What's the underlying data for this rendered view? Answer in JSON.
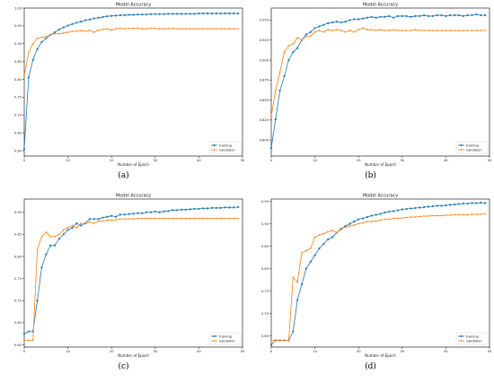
{
  "colors": {
    "training": "#1f77b4",
    "validation": "#ff7f0e"
  },
  "chart_data": [
    {
      "type": "line",
      "caption": "(a)",
      "title": "Model Accuracy",
      "xlabel": "Number of Epoch",
      "ylabel": "",
      "xlim": [
        0,
        50
      ],
      "ylim": [
        0.585,
        1.0
      ],
      "xticks": [
        0,
        10,
        20,
        30,
        40,
        50
      ],
      "yticks": [
        0.6,
        0.65,
        0.7,
        0.75,
        0.8,
        0.85,
        0.9,
        0.95,
        1.0
      ],
      "ytick_labels": [
        "0.60",
        "0.65",
        "0.70",
        "0.75",
        "0.80",
        "0.85",
        "0.90",
        "0.95",
        "1.00"
      ],
      "legend_position": "bottom-right",
      "series": [
        {
          "name": "training",
          "marker": "circle",
          "values": [
            0.605,
            0.805,
            0.855,
            0.885,
            0.905,
            0.915,
            0.925,
            0.932,
            0.94,
            0.946,
            0.951,
            0.955,
            0.959,
            0.962,
            0.966,
            0.968,
            0.971,
            0.973,
            0.975,
            0.977,
            0.978,
            0.979,
            0.98,
            0.98,
            0.981,
            0.981,
            0.982,
            0.982,
            0.982,
            0.983,
            0.983,
            0.983,
            0.983,
            0.984,
            0.984,
            0.984,
            0.984,
            0.984,
            0.984,
            0.984,
            0.985,
            0.985,
            0.985,
            0.985,
            0.985,
            0.985,
            0.985,
            0.985,
            0.985,
            0.985
          ]
        },
        {
          "name": "validation",
          "marker": "plus",
          "values": [
            0.81,
            0.875,
            0.9,
            0.915,
            0.918,
            0.92,
            0.925,
            0.928,
            0.928,
            0.93,
            0.932,
            0.935,
            0.935,
            0.937,
            0.935,
            0.937,
            0.932,
            0.938,
            0.94,
            0.942,
            0.938,
            0.942,
            0.943,
            0.942,
            0.943,
            0.943,
            0.943,
            0.942,
            0.942,
            0.943,
            0.943,
            0.942,
            0.942,
            0.942,
            0.943,
            0.942,
            0.942,
            0.942,
            0.942,
            0.942,
            0.942,
            0.942,
            0.942,
            0.942,
            0.942,
            0.942,
            0.942,
            0.942,
            0.942,
            0.942
          ]
        }
      ]
    },
    {
      "type": "line",
      "caption": "(b)",
      "title": "Model Accuracy",
      "xlabel": "Number of Epoch",
      "ylabel": "",
      "xlim": [
        0,
        50
      ],
      "ylim": [
        0.78,
        0.965
      ],
      "xticks": [
        0,
        10,
        20,
        30,
        40,
        50
      ],
      "yticks": [
        0.8,
        0.825,
        0.85,
        0.875,
        0.9,
        0.925,
        0.95
      ],
      "ytick_labels": [
        "0.800",
        "0.825",
        "0.850",
        "0.875",
        "0.900",
        "0.925",
        "0.950"
      ],
      "legend_position": "bottom-right",
      "series": [
        {
          "name": "training",
          "marker": "circle",
          "values": [
            0.79,
            0.826,
            0.862,
            0.88,
            0.9,
            0.91,
            0.915,
            0.925,
            0.932,
            0.935,
            0.94,
            0.942,
            0.944,
            0.946,
            0.947,
            0.948,
            0.947,
            0.948,
            0.95,
            0.951,
            0.951,
            0.952,
            0.953,
            0.954,
            0.953,
            0.954,
            0.954,
            0.955,
            0.953,
            0.955,
            0.955,
            0.955,
            0.954,
            0.955,
            0.955,
            0.956,
            0.955,
            0.955,
            0.956,
            0.956,
            0.955,
            0.956,
            0.956,
            0.956,
            0.955,
            0.956,
            0.956,
            0.957,
            0.956,
            0.956
          ]
        },
        {
          "name": "validation",
          "marker": "plus",
          "values": [
            0.83,
            0.862,
            0.885,
            0.91,
            0.918,
            0.92,
            0.928,
            0.925,
            0.93,
            0.93,
            0.935,
            0.937,
            0.935,
            0.938,
            0.937,
            0.938,
            0.937,
            0.935,
            0.937,
            0.935,
            0.938,
            0.94,
            0.938,
            0.938,
            0.937,
            0.938,
            0.937,
            0.937,
            0.938,
            0.937,
            0.937,
            0.937,
            0.937,
            0.938,
            0.937,
            0.937,
            0.937,
            0.937,
            0.937,
            0.937,
            0.937,
            0.937,
            0.937,
            0.937,
            0.937,
            0.937,
            0.937,
            0.937,
            0.937,
            0.937
          ]
        }
      ]
    },
    {
      "type": "line",
      "caption": "(c)",
      "title": "Model Accuracy",
      "xlabel": "Number of Epoch",
      "ylabel": "",
      "xlim": [
        0,
        50
      ],
      "ylim": [
        0.595,
        0.93
      ],
      "xticks": [
        0,
        10,
        20,
        30,
        40,
        50
      ],
      "yticks": [
        0.6,
        0.65,
        0.7,
        0.75,
        0.8,
        0.85,
        0.9
      ],
      "ytick_labels": [
        "0.60",
        "0.65",
        "0.70",
        "0.75",
        "0.80",
        "0.85",
        "0.90"
      ],
      "legend_position": "bottom-right",
      "series": [
        {
          "name": "training",
          "marker": "circle",
          "values": [
            0.625,
            0.63,
            0.63,
            0.7,
            0.775,
            0.805,
            0.825,
            0.825,
            0.84,
            0.85,
            0.86,
            0.865,
            0.875,
            0.87,
            0.875,
            0.885,
            0.885,
            0.885,
            0.888,
            0.89,
            0.892,
            0.89,
            0.895,
            0.895,
            0.896,
            0.897,
            0.898,
            0.898,
            0.9,
            0.9,
            0.902,
            0.9,
            0.902,
            0.903,
            0.905,
            0.905,
            0.906,
            0.906,
            0.907,
            0.908,
            0.908,
            0.909,
            0.909,
            0.91,
            0.91,
            0.91,
            0.911,
            0.911,
            0.911,
            0.912
          ]
        },
        {
          "name": "validation",
          "marker": "plus",
          "values": [
            0.61,
            0.61,
            0.61,
            0.815,
            0.845,
            0.855,
            0.845,
            0.845,
            0.85,
            0.86,
            0.865,
            0.87,
            0.865,
            0.875,
            0.875,
            0.878,
            0.875,
            0.88,
            0.88,
            0.882,
            0.882,
            0.883,
            0.885,
            0.885,
            0.885,
            0.885,
            0.886,
            0.886,
            0.886,
            0.886,
            0.886,
            0.886,
            0.886,
            0.886,
            0.886,
            0.886,
            0.886,
            0.886,
            0.886,
            0.886,
            0.886,
            0.886,
            0.886,
            0.886,
            0.886,
            0.886,
            0.886,
            0.886,
            0.886,
            0.886
          ]
        }
      ]
    },
    {
      "type": "line",
      "caption": "(d)",
      "title": "Model Accuracy",
      "xlabel": "Number of Epoch",
      "ylabel": "",
      "xlim": [
        0,
        50
      ],
      "ylim": [
        0.625,
        0.955
      ],
      "xticks": [
        0,
        10,
        20,
        30,
        40,
        50
      ],
      "yticks": [
        0.65,
        0.7,
        0.75,
        0.8,
        0.85,
        0.9,
        0.95
      ],
      "ytick_labels": [
        "0.65",
        "0.70",
        "0.75",
        "0.80",
        "0.85",
        "0.90",
        "0.95"
      ],
      "legend_position": "bottom-right",
      "series": [
        {
          "name": "training",
          "marker": "circle",
          "values": [
            0.63,
            0.64,
            0.64,
            0.64,
            0.64,
            0.66,
            0.73,
            0.765,
            0.8,
            0.815,
            0.83,
            0.845,
            0.855,
            0.865,
            0.87,
            0.88,
            0.888,
            0.895,
            0.9,
            0.905,
            0.91,
            0.912,
            0.915,
            0.918,
            0.92,
            0.922,
            0.925,
            0.927,
            0.928,
            0.93,
            0.932,
            0.933,
            0.934,
            0.935,
            0.936,
            0.937,
            0.938,
            0.939,
            0.94,
            0.94,
            0.941,
            0.942,
            0.943,
            0.944,
            0.945,
            0.945,
            0.946,
            0.946,
            0.947,
            0.946
          ]
        },
        {
          "name": "validation",
          "marker": "plus",
          "values": [
            0.64,
            0.64,
            0.64,
            0.64,
            0.64,
            0.78,
            0.77,
            0.835,
            0.84,
            0.845,
            0.87,
            0.875,
            0.878,
            0.882,
            0.885,
            0.88,
            0.89,
            0.892,
            0.895,
            0.897,
            0.9,
            0.902,
            0.905,
            0.905,
            0.906,
            0.908,
            0.91,
            0.91,
            0.912,
            0.912,
            0.913,
            0.914,
            0.915,
            0.915,
            0.916,
            0.917,
            0.917,
            0.918,
            0.918,
            0.918,
            0.919,
            0.919,
            0.92,
            0.92,
            0.92,
            0.92,
            0.921,
            0.921,
            0.921,
            0.922
          ]
        }
      ]
    }
  ]
}
